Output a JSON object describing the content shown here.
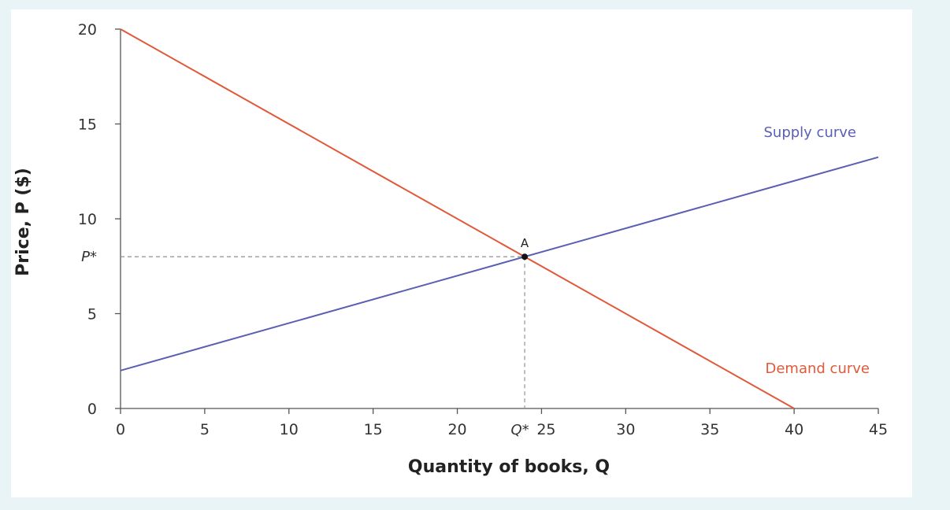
{
  "chart_data": {
    "type": "line",
    "xlabel": "Quantity of books, Q",
    "ylabel": "Price, P ($)",
    "xlim": [
      0,
      45
    ],
    "ylim": [
      0,
      20
    ],
    "x_ticks": [
      0,
      5,
      10,
      15,
      20,
      25,
      30,
      35,
      40,
      45
    ],
    "y_ticks": [
      0,
      5,
      10,
      15,
      20
    ],
    "grid": false,
    "series": [
      {
        "name": "Supply curve",
        "color": "#5a5fb4",
        "x": [
          0,
          45
        ],
        "y": [
          2,
          13.25
        ]
      },
      {
        "name": "Demand curve",
        "color": "#e0593a",
        "x": [
          0,
          40
        ],
        "y": [
          20,
          0
        ]
      }
    ],
    "equilibrium": {
      "label": "A",
      "x": 24,
      "y": 8,
      "x_label": "Q*",
      "y_label": "P*"
    }
  }
}
